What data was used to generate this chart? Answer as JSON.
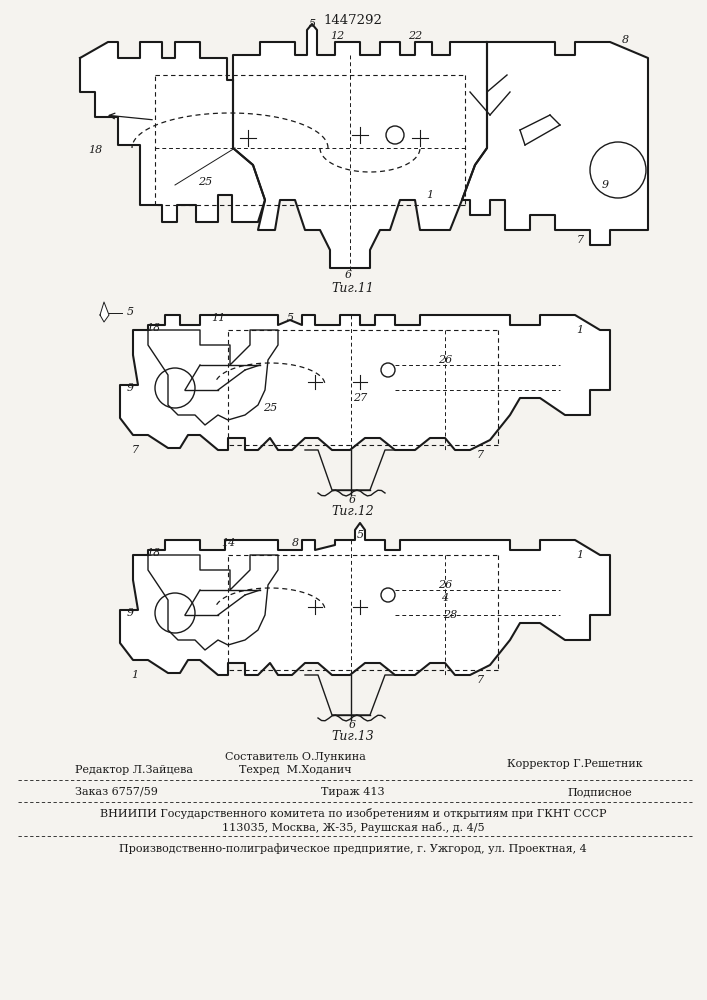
{
  "patent_number": "1447292",
  "bg": "#f5f3ef",
  "lc": "#1a1a1a",
  "fig_captions": [
    "Τиг.11",
    "Τиг.12",
    "Τиг.13"
  ],
  "sostavitel": "Составитель О.Лункина",
  "tehred": "Техред  М.Ходанич",
  "korrektor": "Корректор Г.Решетник",
  "redaktor": "Редактор Л.Зайцева",
  "zakaz": "Заказ 6757/59",
  "tirazh": "Тираж 413",
  "podpisnoe": "Подписное",
  "vniipmi": "ВНИИПИ Государственного комитета по изобретениям и открытиям при ГКНТ СССР",
  "addr": "113035, Москва, Ж-35, Раушская наб., д. 4/5",
  "producer": "Производственно-полиграфическое предприятие, г. Ужгород, ул. Проектная, 4"
}
